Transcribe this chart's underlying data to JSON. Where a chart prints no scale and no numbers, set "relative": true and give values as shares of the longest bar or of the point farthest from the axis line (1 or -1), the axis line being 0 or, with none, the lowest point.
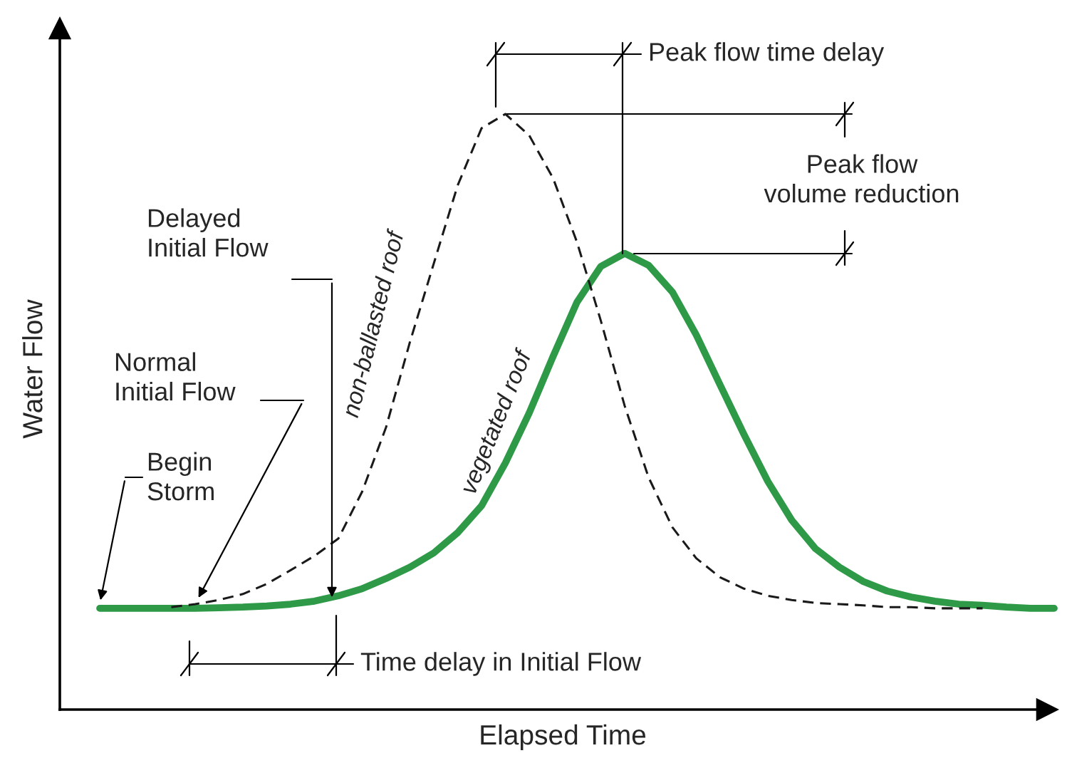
{
  "chart_data": {
    "type": "line",
    "relative": true,
    "xlabel": "Elapsed Time",
    "ylabel": "Water Flow",
    "categories": [
      null,
      null,
      null,
      null,
      null,
      null,
      null,
      null,
      null,
      null,
      null,
      null,
      null,
      null,
      null,
      null,
      null,
      null,
      null,
      null,
      null,
      null,
      null,
      null,
      null,
      null,
      null,
      null,
      null,
      null,
      null,
      null,
      null,
      null,
      null,
      null,
      null,
      null,
      null,
      null,
      null
    ],
    "series": [
      {
        "name": "non-ballasted roof",
        "color": "#1a1a1a",
        "line_style": "dashed",
        "values": [
          null,
          null,
          null,
          0.172,
          0.177,
          0.184,
          0.194,
          0.211,
          0.234,
          0.258,
          0.287,
          0.366,
          0.474,
          0.617,
          0.749,
          0.88,
          0.976,
          1,
          0.964,
          0.892,
          0.785,
          0.653,
          0.51,
          0.39,
          0.306,
          0.254,
          0.222,
          0.203,
          0.191,
          0.184,
          0.179,
          0.177,
          0.175,
          0.172,
          0.172,
          0.17,
          0.17,
          0.17,
          null,
          null,
          null
        ]
      },
      {
        "name": "vegetated roof",
        "color": "#2e9a48",
        "line_style": "solid",
        "values": [
          0.17,
          0.17,
          0.17,
          0.17,
          0.17,
          0.171,
          0.172,
          0.174,
          0.177,
          0.182,
          0.191,
          0.203,
          0.22,
          0.239,
          0.263,
          0.297,
          0.342,
          0.414,
          0.498,
          0.593,
          0.684,
          0.744,
          0.766,
          0.746,
          0.701,
          0.629,
          0.545,
          0.462,
          0.383,
          0.318,
          0.27,
          0.239,
          0.215,
          0.199,
          0.189,
          0.182,
          0.177,
          0.175,
          0.172,
          0.17,
          0.17
        ]
      }
    ],
    "annotations": [
      "Peak flow time delay",
      "Peak flow\nvolume reduction",
      "Delayed\nInitial Flow",
      "Normal\nInitial Flow",
      "Begin\nStorm",
      "Time delay in Initial Flow"
    ]
  }
}
